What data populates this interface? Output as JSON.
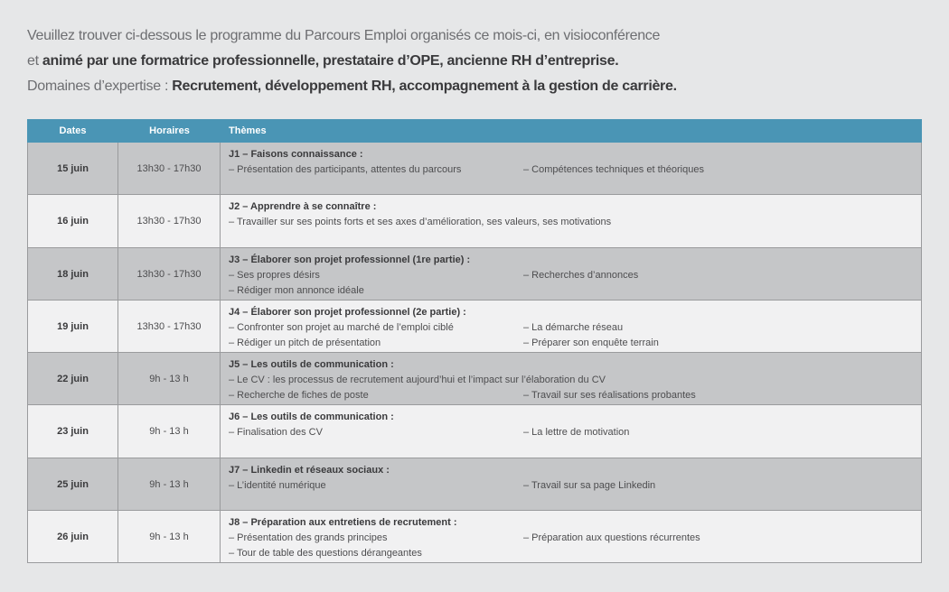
{
  "intro": [
    [
      {
        "text": "Veuillez trouver ci-dessous le programme du Parcours Emploi organisés ce mois-ci, en visioconférence",
        "bold": false
      }
    ],
    [
      {
        "text": "et ",
        "bold": false
      },
      {
        "text": "animé par une formatrice professionnelle, prestataire d’OPE, ancienne RH d’entreprise.",
        "bold": true
      }
    ],
    [
      {
        "text": "Domaines d’expertise : ",
        "bold": false
      },
      {
        "text": "Recrutement, développement RH, accompagnement à la gestion de carrière.",
        "bold": true
      }
    ]
  ],
  "table": {
    "headers": [
      "Dates",
      "Horaires",
      "Thèmes"
    ],
    "rows": [
      {
        "date": "15 juin",
        "hours": "13h30 - 17h30",
        "title": "J1 – Faisons connaissance :",
        "items": [
          [
            "– Présentation des participants, attentes du parcours",
            "– Compétences techniques et théoriques"
          ]
        ]
      },
      {
        "date": "16 juin",
        "hours": "13h30 - 17h30",
        "title": "J2 – Apprendre à se connaître :",
        "items": [
          [
            "– Travailler sur ses points forts et ses axes d’amélioration, ses valeurs, ses motivations"
          ]
        ]
      },
      {
        "date": "18 juin",
        "hours": "13h30 - 17h30",
        "title": "J3 – Élaborer son projet professionnel (1re partie) :",
        "items": [
          [
            "– Ses propres désirs",
            "– Recherches d’annonces"
          ],
          [
            "– Rédiger mon annonce idéale"
          ]
        ]
      },
      {
        "date": "19 juin",
        "hours": "13h30 - 17h30",
        "title": "J4 – Élaborer son projet professionnel (2e partie) :",
        "items": [
          [
            "– Confronter son projet au marché de l’emploi ciblé",
            "– La démarche réseau"
          ],
          [
            "– Rédiger un pitch de présentation",
            "– Préparer son enquête terrain"
          ]
        ]
      },
      {
        "date": "22 juin",
        "hours": "9h - 13 h",
        "title": "J5 – Les outils de communication :",
        "items": [
          [
            "– Le CV : les processus de recrutement aujourd’hui et l’impact sur l’élaboration du CV"
          ],
          [
            "– Recherche de fiches de poste",
            "– Travail sur ses réalisations probantes"
          ]
        ]
      },
      {
        "date": "23 juin",
        "hours": "9h - 13 h",
        "title": "J6 – Les outils de communication :",
        "items": [
          [
            "– Finalisation des CV",
            "– La lettre de motivation"
          ]
        ]
      },
      {
        "date": "25 juin",
        "hours": "9h - 13 h",
        "title": "J7 – Linkedin et réseaux sociaux :",
        "items": [
          [
            "– L’identité numérique",
            "– Travail sur sa page Linkedin"
          ]
        ]
      },
      {
        "date": "26 juin",
        "hours": "9h - 13 h",
        "title": "J8 – Préparation aux entretiens de recrutement :",
        "items": [
          [
            "– Présentation des grands principes",
            "– Préparation aux questions récurrentes"
          ],
          [
            "– Tour de table des questions dérangeantes"
          ]
        ]
      }
    ]
  }
}
